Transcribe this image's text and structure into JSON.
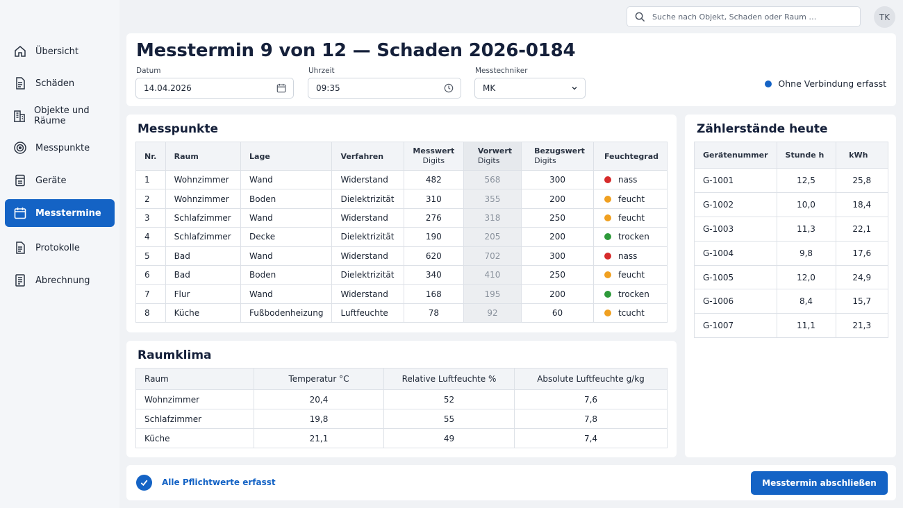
{
  "nav": [
    {
      "label": "Übersicht",
      "icon": "home-icon"
    },
    {
      "label": "Schäden",
      "icon": "document-icon"
    },
    {
      "label": "Objekte und Räume",
      "icon": "building-icon"
    },
    {
      "label": "Messpunkte",
      "icon": "target-icon"
    },
    {
      "label": "Geräte",
      "icon": "device-icon"
    },
    {
      "label": "Messtermine",
      "icon": "calendar-icon",
      "active": true
    },
    {
      "label": "Protokolle",
      "icon": "document-icon"
    },
    {
      "label": "Abrechnung",
      "icon": "invoice-icon"
    }
  ],
  "search": {
    "placeholder": "Suche nach Objekt, Schaden oder Raum …"
  },
  "user": {
    "initials": "TK"
  },
  "header": {
    "title": "Messtermin 9 von 12 — Schaden 2026-0184",
    "date_label": "Datum",
    "date_value": "14.04.2026",
    "time_label": "Uhrzeit",
    "time_value": "09:35",
    "tech_label": "Messtechniker",
    "tech_value": "MK",
    "status": "Ohne Verbindung erfasst"
  },
  "messpunkte": {
    "title": "Messpunkte",
    "headers": [
      "Nr.",
      "Raum",
      "Lage",
      "Verfahren",
      "Messwert",
      "Digits",
      "Vorwert",
      "Digits",
      "Bezugswert",
      "Digits",
      "Feuchtegrad"
    ],
    "rows": [
      {
        "nr": "1",
        "raum": "Wohnzimmer",
        "lage": "Wand",
        "verfahren": "Widerstand",
        "messwert": "482",
        "vorwert": "568",
        "bezug": "300",
        "grad": "nass",
        "color": "#d62b2b"
      },
      {
        "nr": "2",
        "raum": "Wohnzimmer",
        "lage": "Boden",
        "verfahren": "Dielektrizität",
        "messwert": "310",
        "vorwert": "355",
        "bezug": "200",
        "grad": "feucht",
        "color": "#f0a020"
      },
      {
        "nr": "3",
        "raum": "Schlafzimmer",
        "lage": "Wand",
        "verfahren": "Widerstand",
        "messwert": "276",
        "vorwert": "318",
        "bezug": "250",
        "grad": "feucht",
        "color": "#f0a020"
      },
      {
        "nr": "4",
        "raum": "Schlafzimmer",
        "lage": "Decke",
        "verfahren": "Dielektrizität",
        "messwert": "190",
        "vorwert": "205",
        "bezug": "200",
        "grad": "trocken",
        "color": "#2e9a3a"
      },
      {
        "nr": "5",
        "raum": "Bad",
        "lage": "Wand",
        "verfahren": "Widerstand",
        "messwert": "620",
        "vorwert": "702",
        "bezug": "300",
        "grad": "nass",
        "color": "#d62b2b"
      },
      {
        "nr": "6",
        "raum": "Bad",
        "lage": "Boden",
        "verfahren": "Dielektrizität",
        "messwert": "340",
        "vorwert": "410",
        "bezug": "250",
        "grad": "feucht",
        "color": "#f0a020"
      },
      {
        "nr": "7",
        "raum": "Flur",
        "lage": "Wand",
        "verfahren": "Widerstand",
        "messwert": "168",
        "vorwert": "195",
        "bezug": "200",
        "grad": "trocken",
        "color": "#2e9a3a"
      },
      {
        "nr": "8",
        "raum": "Küche",
        "lage": "Fußbodenheizung",
        "verfahren": "Luftfeuchte",
        "messwert": "78",
        "vorwert": "92",
        "bezug": "60",
        "grad": "tcucht",
        "color": "#f0a020"
      }
    ]
  },
  "raumklima": {
    "title": "Raumklima",
    "headers": [
      "Raum",
      "Temperatur °C",
      "Relative Luftfeuchte %",
      "Absolute Luftfeuchte g/kg"
    ],
    "rows": [
      {
        "raum": "Wohnzimmer",
        "temp": "20,4",
        "rel": "52",
        "abs": "7,6"
      },
      {
        "raum": "Schlafzimmer",
        "temp": "19,8",
        "rel": "55",
        "abs": "7,8"
      },
      {
        "raum": "Küche",
        "temp": "21,1",
        "rel": "49",
        "abs": "7,4"
      }
    ]
  },
  "zaehler": {
    "title": "Zählerstände heute",
    "headers": [
      "Gerätenummer",
      "Stunde h",
      "kWh"
    ],
    "rows": [
      {
        "nr": "G-1001",
        "h": "12,5",
        "kwh": "25,8"
      },
      {
        "nr": "G-1002",
        "h": "10,0",
        "kwh": "18,4"
      },
      {
        "nr": "G-1003",
        "h": "11,3",
        "kwh": "22,1"
      },
      {
        "nr": "G-1004",
        "h": "9,8",
        "kwh": "17,6"
      },
      {
        "nr": "G-1005",
        "h": "12,0",
        "kwh": "24,9"
      },
      {
        "nr": "G-1006",
        "h": "8,4",
        "kwh": "15,7"
      },
      {
        "nr": "G-1007",
        "h": "11,1",
        "kwh": "21,3"
      }
    ]
  },
  "footer": {
    "status": "Alle Pflichtwerte erfasst",
    "button": "Messtermin abschließen"
  },
  "colors": {
    "accent": "#1463c5",
    "nass": "#d62b2b",
    "feucht": "#f0a020",
    "trocken": "#2e9a3a"
  }
}
